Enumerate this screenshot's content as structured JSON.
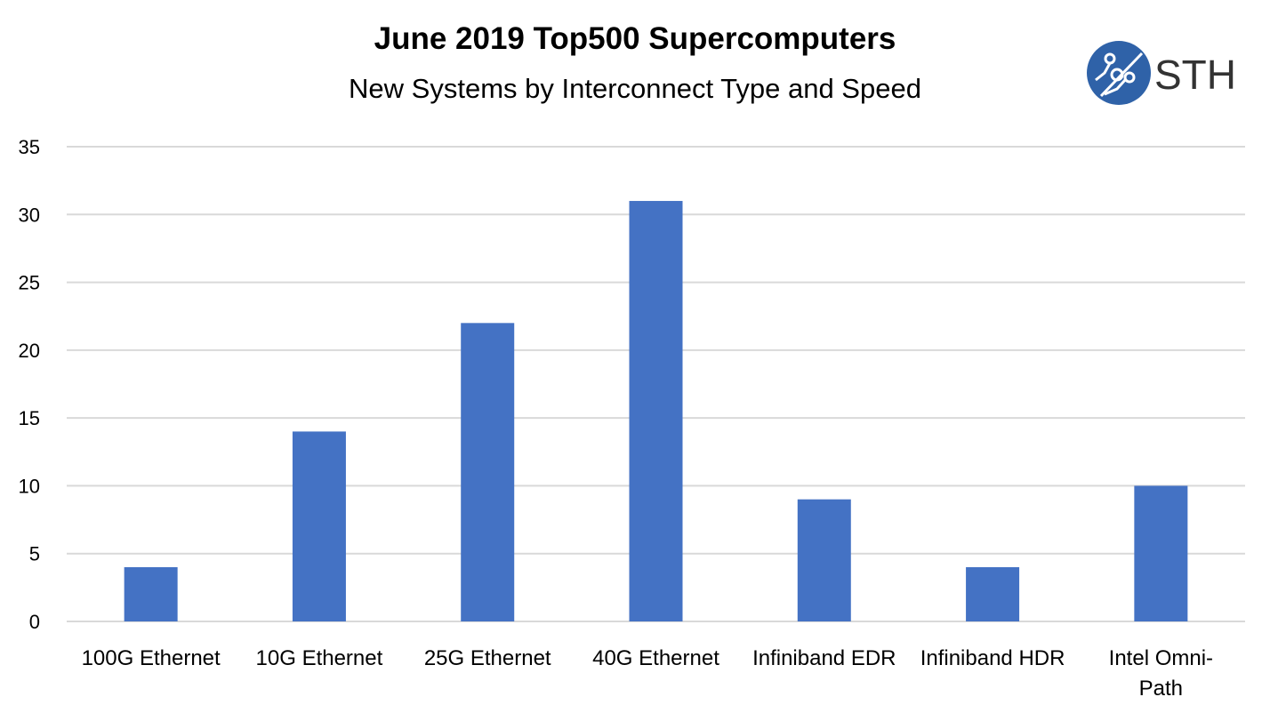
{
  "chart_data": {
    "type": "bar",
    "title": "June 2019 Top500 Supercomputers",
    "subtitle": "New Systems by Interconnect Type and Speed",
    "categories": [
      "100G Ethernet",
      "10G Ethernet",
      "25G Ethernet",
      "40G Ethernet",
      "Infiniband EDR",
      "Infiniband HDR",
      "Intel Omni-Path"
    ],
    "values": [
      4,
      14,
      22,
      31,
      9,
      4,
      10
    ],
    "xlabel": "",
    "ylabel": "",
    "ylim": [
      0,
      35
    ],
    "yticks": [
      0,
      5,
      10,
      15,
      20,
      25,
      30,
      35
    ],
    "grid": true,
    "legend": "none",
    "bar_color": "#4472C4",
    "grid_color": "#D9D9D9"
  },
  "logo": {
    "text": "STH",
    "color": "#2F62A8"
  }
}
